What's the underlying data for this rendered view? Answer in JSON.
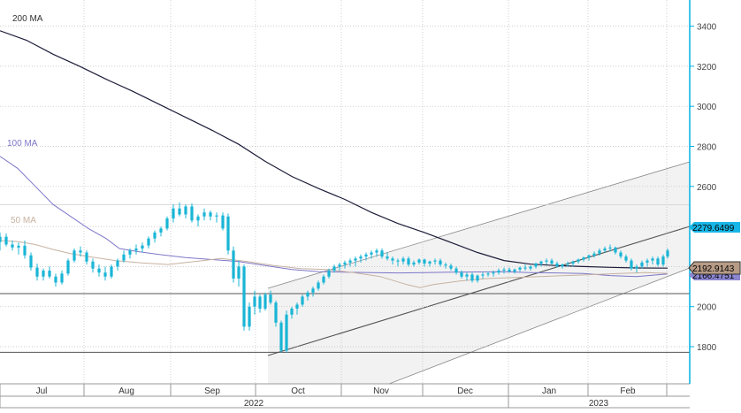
{
  "chart_data": {
    "type": "candlestick",
    "colors": {
      "candle": "#19b5d6",
      "ma200": "#1d1d3a",
      "ma100": "#7d77c8",
      "ma50": "#c7b2a2",
      "channel_fill": "#f2f2f2",
      "channel_line": "#888888",
      "gridline": "#bdbdbd",
      "axis": "#00b0e0",
      "tag_current": "#18b6e6",
      "tag_ma50": "#b79b86",
      "tag_ma100": "#8b86d0"
    },
    "y_axis": {
      "ticks": [
        1800,
        2000,
        2200,
        2400,
        2600,
        2800,
        3000,
        3200,
        3400
      ],
      "ylim": [
        1620,
        3480
      ]
    },
    "x_axis": {
      "months": [
        "Jul",
        "Aug",
        "Sep",
        "Oct",
        "Nov",
        "Dec",
        "Jan",
        "Feb"
      ],
      "years": [
        "2022",
        "2023"
      ]
    },
    "horizontal_lines": [
      2509,
      2065,
      1772
    ],
    "series": [
      {
        "name": "200 MA",
        "points": [
          [
            0,
            3377
          ],
          [
            30,
            3330
          ],
          [
            60,
            3260
          ],
          [
            90,
            3200
          ],
          [
            120,
            3135
          ],
          [
            150,
            3075
          ],
          [
            180,
            3010
          ],
          [
            210,
            2945
          ],
          [
            240,
            2880
          ],
          [
            270,
            2810
          ],
          [
            300,
            2725
          ],
          [
            330,
            2650
          ],
          [
            360,
            2590
          ],
          [
            390,
            2535
          ],
          [
            420,
            2470
          ],
          [
            450,
            2415
          ],
          [
            480,
            2370
          ],
          [
            510,
            2320
          ],
          [
            540,
            2270
          ],
          [
            570,
            2230
          ],
          [
            600,
            2212
          ],
          [
            630,
            2205
          ],
          [
            660,
            2200
          ],
          [
            690,
            2196
          ],
          [
            720,
            2193
          ],
          [
            755,
            2192
          ]
        ]
      },
      {
        "name": "100 MA",
        "points": [
          [
            0,
            2750
          ],
          [
            20,
            2690
          ],
          [
            40,
            2600
          ],
          [
            60,
            2510
          ],
          [
            80,
            2450
          ],
          [
            100,
            2390
          ],
          [
            120,
            2340
          ],
          [
            135,
            2290
          ],
          [
            155,
            2275
          ],
          [
            180,
            2260
          ],
          [
            210,
            2245
          ],
          [
            240,
            2235
          ],
          [
            270,
            2225
          ],
          [
            300,
            2205
          ],
          [
            330,
            2185
          ],
          [
            360,
            2175
          ],
          [
            390,
            2172
          ],
          [
            420,
            2170
          ],
          [
            450,
            2168
          ],
          [
            480,
            2170
          ],
          [
            510,
            2172
          ],
          [
            540,
            2173
          ],
          [
            570,
            2174
          ],
          [
            600,
            2170
          ],
          [
            630,
            2168
          ],
          [
            660,
            2165
          ],
          [
            690,
            2155
          ],
          [
            720,
            2150
          ],
          [
            755,
            2163
          ]
        ]
      },
      {
        "name": "50 MA",
        "points": [
          [
            0,
            2330
          ],
          [
            20,
            2325
          ],
          [
            40,
            2310
          ],
          [
            60,
            2285
          ],
          [
            80,
            2265
          ],
          [
            100,
            2250
          ],
          [
            130,
            2230
          ],
          [
            160,
            2218
          ],
          [
            190,
            2210
          ],
          [
            220,
            2225
          ],
          [
            250,
            2240
          ],
          [
            280,
            2225
          ],
          [
            310,
            2205
          ],
          [
            340,
            2190
          ],
          [
            370,
            2185
          ],
          [
            400,
            2170
          ],
          [
            430,
            2150
          ],
          [
            460,
            2110
          ],
          [
            475,
            2095
          ],
          [
            490,
            2110
          ],
          [
            520,
            2128
          ],
          [
            550,
            2140
          ],
          [
            580,
            2145
          ],
          [
            610,
            2150
          ],
          [
            640,
            2155
          ],
          [
            670,
            2160
          ],
          [
            700,
            2165
          ],
          [
            730,
            2170
          ],
          [
            755,
            2166
          ]
        ]
      }
    ],
    "candles": [
      [
        0,
        2322,
        2370,
        2280,
        2349
      ],
      [
        7,
        2349,
        2365,
        2300,
        2310
      ],
      [
        14,
        2310,
        2330,
        2280,
        2295
      ],
      [
        21,
        2295,
        2320,
        2260,
        2304
      ],
      [
        28,
        2304,
        2330,
        2240,
        2256
      ],
      [
        35,
        2256,
        2270,
        2180,
        2195
      ],
      [
        42,
        2195,
        2215,
        2130,
        2150
      ],
      [
        49,
        2150,
        2190,
        2130,
        2180
      ],
      [
        56,
        2180,
        2200,
        2140,
        2150
      ],
      [
        63,
        2150,
        2165,
        2100,
        2120
      ],
      [
        70,
        2120,
        2180,
        2110,
        2165
      ],
      [
        77,
        2165,
        2240,
        2155,
        2230
      ],
      [
        84,
        2230,
        2290,
        2220,
        2280
      ],
      [
        91,
        2280,
        2300,
        2250,
        2270
      ],
      [
        98,
        2270,
        2280,
        2210,
        2225
      ],
      [
        105,
        2225,
        2240,
        2170,
        2190
      ],
      [
        112,
        2190,
        2210,
        2150,
        2170
      ],
      [
        119,
        2170,
        2200,
        2130,
        2150
      ],
      [
        126,
        2150,
        2210,
        2140,
        2200
      ],
      [
        133,
        2200,
        2240,
        2180,
        2230
      ],
      [
        140,
        2230,
        2280,
        2220,
        2260
      ],
      [
        147,
        2260,
        2290,
        2240,
        2280
      ],
      [
        154,
        2280,
        2310,
        2260,
        2290
      ],
      [
        161,
        2290,
        2320,
        2270,
        2305
      ],
      [
        168,
        2305,
        2350,
        2290,
        2340
      ],
      [
        175,
        2340,
        2380,
        2320,
        2370
      ],
      [
        182,
        2370,
        2400,
        2350,
        2390
      ],
      [
        189,
        2390,
        2450,
        2380,
        2440
      ],
      [
        196,
        2440,
        2510,
        2420,
        2490
      ],
      [
        203,
        2490,
        2520,
        2450,
        2460
      ],
      [
        210,
        2460,
        2510,
        2440,
        2500
      ],
      [
        217,
        2500,
        2515,
        2420,
        2430
      ],
      [
        224,
        2430,
        2460,
        2400,
        2450
      ],
      [
        231,
        2450,
        2490,
        2430,
        2470
      ],
      [
        238,
        2470,
        2480,
        2430,
        2450
      ],
      [
        245,
        2450,
        2470,
        2420,
        2455
      ],
      [
        252,
        2455,
        2470,
        2380,
        2390
      ],
      [
        258,
        2450,
        2465,
        2260,
        2280
      ],
      [
        264,
        2280,
        2300,
        2120,
        2140
      ],
      [
        270,
        2140,
        2230,
        2100,
        2200
      ],
      [
        276,
        2200,
        2210,
        1880,
        1900
      ],
      [
        282,
        1900,
        2020,
        1880,
        2000
      ],
      [
        288,
        2000,
        2080,
        1960,
        2050
      ],
      [
        294,
        2050,
        2060,
        1970,
        1990
      ],
      [
        300,
        1990,
        2070,
        1980,
        2060
      ],
      [
        306,
        2060,
        2080,
        2010,
        2020
      ],
      [
        312,
        2020,
        2030,
        1900,
        1920
      ],
      [
        318,
        1920,
        1930,
        1770,
        1780
      ],
      [
        324,
        1780,
        1980,
        1770,
        1960
      ],
      [
        330,
        1960,
        2000,
        1940,
        1990
      ],
      [
        336,
        1990,
        2020,
        1960,
        2010
      ],
      [
        342,
        2010,
        2060,
        2000,
        2050
      ],
      [
        348,
        2050,
        2080,
        2030,
        2070
      ],
      [
        354,
        2070,
        2100,
        2050,
        2090
      ],
      [
        360,
        2090,
        2130,
        2080,
        2120
      ],
      [
        366,
        2120,
        2160,
        2110,
        2150
      ],
      [
        372,
        2150,
        2190,
        2140,
        2180
      ],
      [
        378,
        2180,
        2210,
        2170,
        2200
      ],
      [
        384,
        2200,
        2220,
        2180,
        2210
      ],
      [
        390,
        2210,
        2230,
        2190,
        2220
      ],
      [
        396,
        2220,
        2240,
        2200,
        2230
      ],
      [
        402,
        2230,
        2250,
        2200,
        2240
      ],
      [
        408,
        2240,
        2260,
        2220,
        2250
      ],
      [
        414,
        2250,
        2270,
        2230,
        2260
      ],
      [
        420,
        2260,
        2280,
        2240,
        2270
      ],
      [
        426,
        2270,
        2290,
        2250,
        2280
      ],
      [
        432,
        2280,
        2290,
        2240,
        2250
      ],
      [
        438,
        2250,
        2270,
        2230,
        2240
      ],
      [
        444,
        2240,
        2250,
        2210,
        2230
      ],
      [
        450,
        2230,
        2240,
        2200,
        2225
      ],
      [
        456,
        2225,
        2250,
        2210,
        2240
      ],
      [
        462,
        2240,
        2250,
        2200,
        2210
      ],
      [
        468,
        2210,
        2230,
        2200,
        2220
      ],
      [
        474,
        2220,
        2240,
        2210,
        2235
      ],
      [
        480,
        2235,
        2240,
        2200,
        2215
      ],
      [
        486,
        2215,
        2230,
        2200,
        2225
      ],
      [
        492,
        2225,
        2240,
        2210,
        2230
      ],
      [
        498,
        2230,
        2240,
        2200,
        2210
      ],
      [
        504,
        2210,
        2220,
        2190,
        2205
      ],
      [
        510,
        2205,
        2215,
        2180,
        2190
      ],
      [
        516,
        2190,
        2200,
        2160,
        2170
      ],
      [
        522,
        2170,
        2180,
        2140,
        2150
      ],
      [
        528,
        2150,
        2170,
        2130,
        2160
      ],
      [
        534,
        2160,
        2170,
        2120,
        2130
      ],
      [
        540,
        2130,
        2160,
        2120,
        2155
      ],
      [
        546,
        2155,
        2170,
        2140,
        2160
      ],
      [
        552,
        2160,
        2175,
        2150,
        2165
      ],
      [
        558,
        2165,
        2180,
        2150,
        2170
      ],
      [
        564,
        2170,
        2190,
        2160,
        2180
      ],
      [
        570,
        2180,
        2195,
        2165,
        2185
      ],
      [
        576,
        2185,
        2195,
        2170,
        2175
      ],
      [
        582,
        2175,
        2190,
        2165,
        2185
      ],
      [
        588,
        2185,
        2200,
        2175,
        2195
      ],
      [
        594,
        2195,
        2210,
        2180,
        2190
      ],
      [
        600,
        2190,
        2205,
        2180,
        2200
      ],
      [
        606,
        2200,
        2220,
        2190,
        2215
      ],
      [
        612,
        2215,
        2230,
        2200,
        2225
      ],
      [
        618,
        2225,
        2240,
        2210,
        2230
      ],
      [
        624,
        2230,
        2240,
        2210,
        2215
      ],
      [
        630,
        2215,
        2225,
        2195,
        2200
      ],
      [
        636,
        2200,
        2215,
        2190,
        2210
      ],
      [
        642,
        2210,
        2225,
        2200,
        2215
      ],
      [
        648,
        2215,
        2230,
        2200,
        2225
      ],
      [
        654,
        2225,
        2240,
        2215,
        2235
      ],
      [
        660,
        2235,
        2250,
        2225,
        2245
      ],
      [
        666,
        2245,
        2260,
        2230,
        2255
      ],
      [
        672,
        2255,
        2275,
        2245,
        2265
      ],
      [
        678,
        2265,
        2290,
        2255,
        2280
      ],
      [
        684,
        2280,
        2300,
        2270,
        2290
      ],
      [
        690,
        2290,
        2310,
        2275,
        2295
      ],
      [
        696,
        2295,
        2300,
        2260,
        2270
      ],
      [
        702,
        2270,
        2280,
        2240,
        2250
      ],
      [
        708,
        2250,
        2260,
        2220,
        2230
      ],
      [
        714,
        2230,
        2240,
        2180,
        2190
      ],
      [
        720,
        2190,
        2210,
        2170,
        2200
      ],
      [
        726,
        2200,
        2230,
        2190,
        2220
      ],
      [
        732,
        2220,
        2240,
        2200,
        2230
      ],
      [
        738,
        2230,
        2250,
        2210,
        2240
      ],
      [
        744,
        2240,
        2250,
        2200,
        2210
      ],
      [
        750,
        2210,
        2260,
        2200,
        2250
      ],
      [
        755,
        2250,
        2290,
        2240,
        2280
      ]
    ],
    "labels": {
      "ma200": "200 MA",
      "ma100": "100 MA",
      "ma50": "50 MA"
    },
    "price_tags": [
      {
        "value": "2279.6499"
      },
      {
        "value": "2192.9143"
      },
      {
        "value": "2166.4751"
      }
    ]
  }
}
